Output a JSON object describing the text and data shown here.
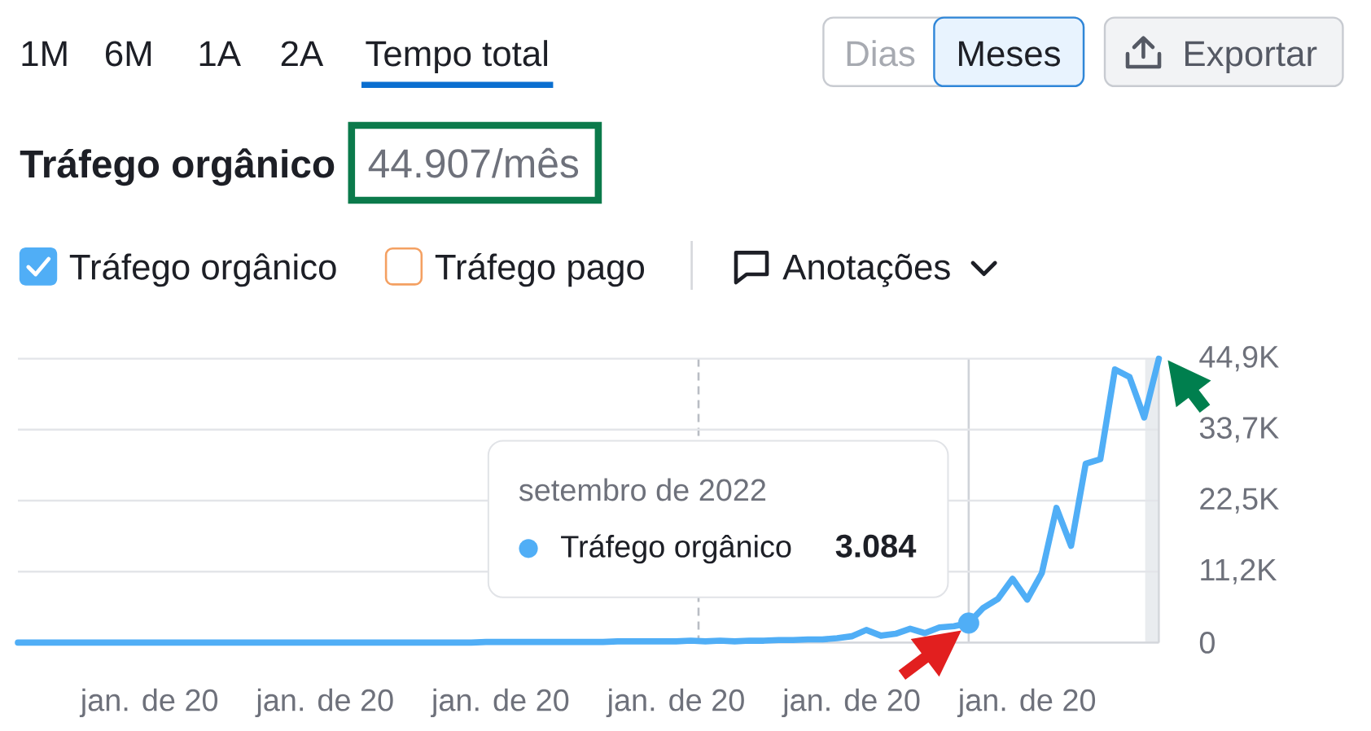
{
  "chart_data": {
    "type": "line",
    "title": "Tráfego orgânico",
    "subtitle": "44.907/mês",
    "categories": [
      null,
      null,
      null,
      null,
      null,
      null,
      null,
      null,
      null,
      "jan. de 20",
      null,
      null,
      null,
      null,
      null,
      null,
      null,
      null,
      null,
      null,
      null,
      "jan. de 20",
      null,
      null,
      null,
      null,
      null,
      null,
      null,
      null,
      null,
      null,
      null,
      "jan. de 20",
      null,
      null,
      null,
      null,
      null,
      null,
      null,
      null,
      null,
      null,
      null,
      "jan. de 20",
      null,
      null,
      null,
      null,
      null,
      null,
      null,
      null,
      null,
      null,
      null,
      "jan. de 20",
      null,
      null,
      null,
      null,
      null,
      null,
      null,
      null,
      null,
      null,
      null,
      "jan. de 20",
      null,
      null,
      null,
      null,
      null,
      null,
      null,
      null,
      null
    ],
    "series": [
      {
        "name": "Tráfego orgânico",
        "color": "#50aef6",
        "values": [
          0,
          0,
          0,
          0,
          0,
          0,
          0,
          0,
          0,
          0,
          0,
          0,
          0,
          0,
          0,
          0,
          0,
          0,
          0,
          0,
          0,
          0,
          0,
          0,
          0,
          0,
          0,
          0,
          0,
          0,
          0,
          0,
          100,
          100,
          100,
          100,
          100,
          100,
          100,
          100,
          100,
          200,
          200,
          200,
          200,
          200,
          300,
          200,
          300,
          200,
          300,
          300,
          400,
          400,
          500,
          500,
          700,
          1000,
          2000,
          1100,
          1400,
          2200,
          1500,
          2400,
          2600,
          3084,
          5500,
          6900,
          10100,
          6800,
          11000,
          21300,
          15300,
          28300,
          29000,
          43200,
          42000,
          35600,
          44907
        ]
      },
      {
        "name": "Tráfego pago",
        "color": "#f4a062",
        "values": [
          null,
          null,
          null,
          null,
          null,
          null,
          null,
          null,
          null,
          null,
          null,
          null,
          null,
          null,
          null,
          null,
          null,
          null,
          null,
          null,
          null,
          null,
          null,
          null,
          null,
          null,
          null,
          null,
          null,
          null,
          null,
          null,
          null,
          null,
          null,
          null,
          null,
          null,
          null,
          null,
          null,
          null,
          null,
          null,
          null,
          null,
          null,
          null,
          null,
          null,
          null,
          null,
          null,
          null,
          null,
          null,
          null,
          null,
          null,
          null,
          null,
          null,
          null,
          null,
          null,
          null,
          null,
          null,
          null,
          null,
          null,
          null,
          null,
          null,
          null,
          null,
          null,
          null,
          null
        ]
      },
      {
        "type": "scatter",
        "color": "#50aef6",
        "values": [
          null,
          null,
          null,
          null,
          null,
          null,
          null,
          null,
          null,
          null,
          null,
          null,
          null,
          null,
          null,
          null,
          null,
          null,
          null,
          null,
          null,
          null,
          null,
          null,
          null,
          null,
          null,
          null,
          null,
          null,
          null,
          null,
          null,
          null,
          null,
          null,
          null,
          null,
          null,
          null,
          null,
          null,
          null,
          null,
          null,
          null,
          null,
          null,
          null,
          null,
          null,
          null,
          null,
          null,
          null,
          null,
          null,
          null,
          null,
          null,
          null,
          null,
          null,
          null,
          null,
          3084,
          null,
          null,
          null,
          null,
          null,
          null,
          null,
          null,
          null,
          null,
          null,
          null,
          null
        ],
        "value_labels": [
          null,
          null,
          null,
          null,
          null,
          null,
          null,
          null,
          null,
          null,
          null,
          null,
          null,
          null,
          null,
          null,
          null,
          null,
          null,
          null,
          null,
          null,
          null,
          null,
          null,
          null,
          null,
          null,
          null,
          null,
          null,
          null,
          null,
          null,
          null,
          null,
          null,
          null,
          null,
          null,
          null,
          null,
          null,
          null,
          null,
          null,
          null,
          null,
          null,
          null,
          null,
          null,
          null,
          null,
          null,
          null,
          null,
          null,
          null,
          null,
          null,
          null,
          null,
          null,
          null,
          "3.084",
          null,
          null,
          null,
          null,
          null,
          null,
          null,
          null,
          null,
          null,
          null,
          null,
          null
        ]
      }
    ],
    "ylim": [
      0,
      44907
    ],
    "yticks": [
      0,
      {
        "value": 11227,
        "label": "11,2K"
      },
      {
        "value": 22454,
        "label": "22,5K"
      },
      {
        "value": 33680,
        "label": "33,7K"
      },
      {
        "value": 44907,
        "label": "44,9K"
      }
    ],
    "grid": "y",
    "legend": "top left",
    "annotations": [
      "1M",
      "6M",
      "1A",
      "2A",
      "Tempo total",
      "Dias",
      "Meses",
      "Exportar",
      "Anotações",
      "setembro de 2022"
    ]
  }
}
